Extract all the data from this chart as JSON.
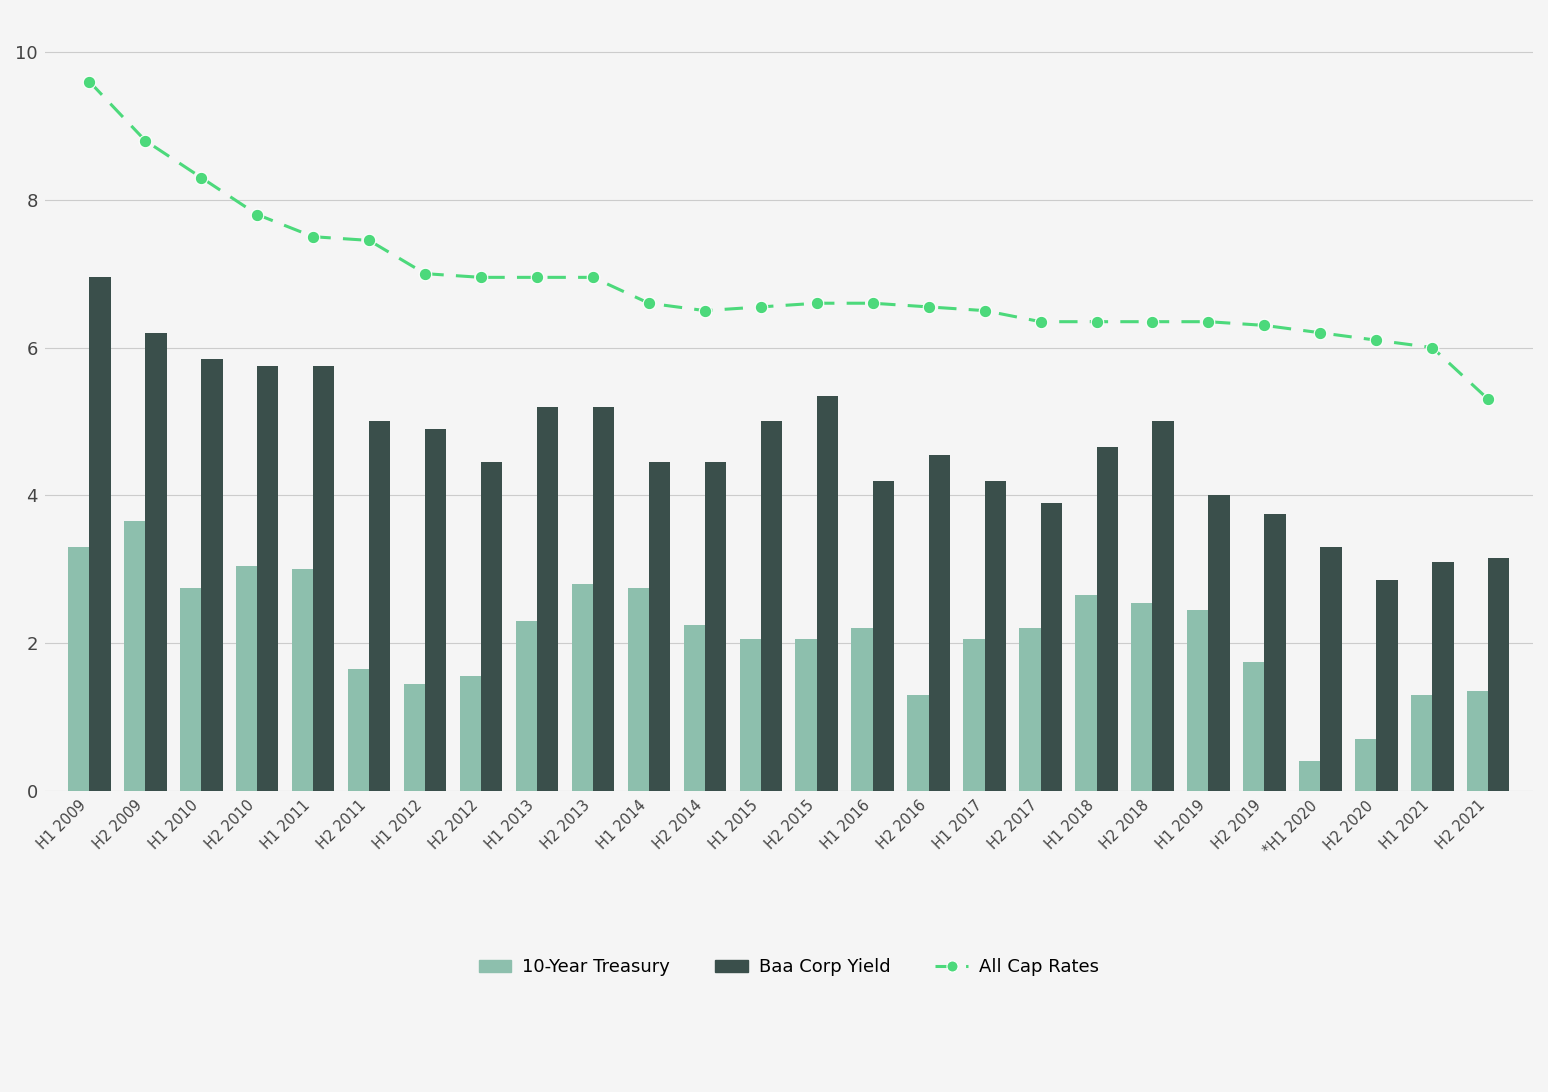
{
  "categories": [
    "H1 2009",
    "H2 2009",
    "H1 2010",
    "H2 2010",
    "H1 2011",
    "H2 2011",
    "H1 2012",
    "H2 2012",
    "H1 2013",
    "H2 2013",
    "H1 2014",
    "H2 2014",
    "H1 2015",
    "H2 2015",
    "H1 2016",
    "H2 2016",
    "H1 2017",
    "H2 2017",
    "H1 2018",
    "H2 2018",
    "H1 2019",
    "H2 2019",
    "*H1 2020",
    "H2 2020",
    "H1 2021",
    "H2 2021"
  ],
  "treasury": [
    3.3,
    3.65,
    2.75,
    3.05,
    3.0,
    1.65,
    1.45,
    1.55,
    2.3,
    2.8,
    2.75,
    2.25,
    2.05,
    2.05,
    2.2,
    1.3,
    2.05,
    2.2,
    2.65,
    2.55,
    2.45,
    1.75,
    0.4,
    0.7,
    1.3,
    1.35
  ],
  "baa_yield": [
    6.95,
    6.2,
    5.85,
    5.75,
    5.75,
    5.0,
    4.9,
    4.45,
    5.2,
    5.2,
    4.45,
    4.45,
    5.0,
    5.35,
    4.2,
    4.55,
    4.2,
    3.9,
    4.65,
    5.0,
    4.0,
    3.75,
    3.3,
    2.85,
    3.1,
    3.15
  ],
  "cap_rates": [
    9.6,
    8.8,
    8.3,
    7.8,
    7.5,
    7.45,
    7.0,
    6.95,
    6.95,
    6.95,
    6.6,
    6.5,
    6.55,
    6.6,
    6.6,
    6.55,
    6.5,
    6.35,
    6.35,
    6.35,
    6.35,
    6.3,
    6.2,
    6.1,
    6.0,
    5.3
  ],
  "bar_color_treasury": "#8dbfad",
  "bar_color_baa": "#3a4f4b",
  "line_color_cap": "#4cd97b",
  "background_color": "#f5f5f5",
  "ylim_min": 0,
  "ylim_max": 10.5,
  "yticks": [
    0,
    2,
    4,
    6,
    8,
    10
  ],
  "legend_labels": [
    "10-Year Treasury",
    "Baa Corp Yield",
    "All Cap Rates"
  ]
}
